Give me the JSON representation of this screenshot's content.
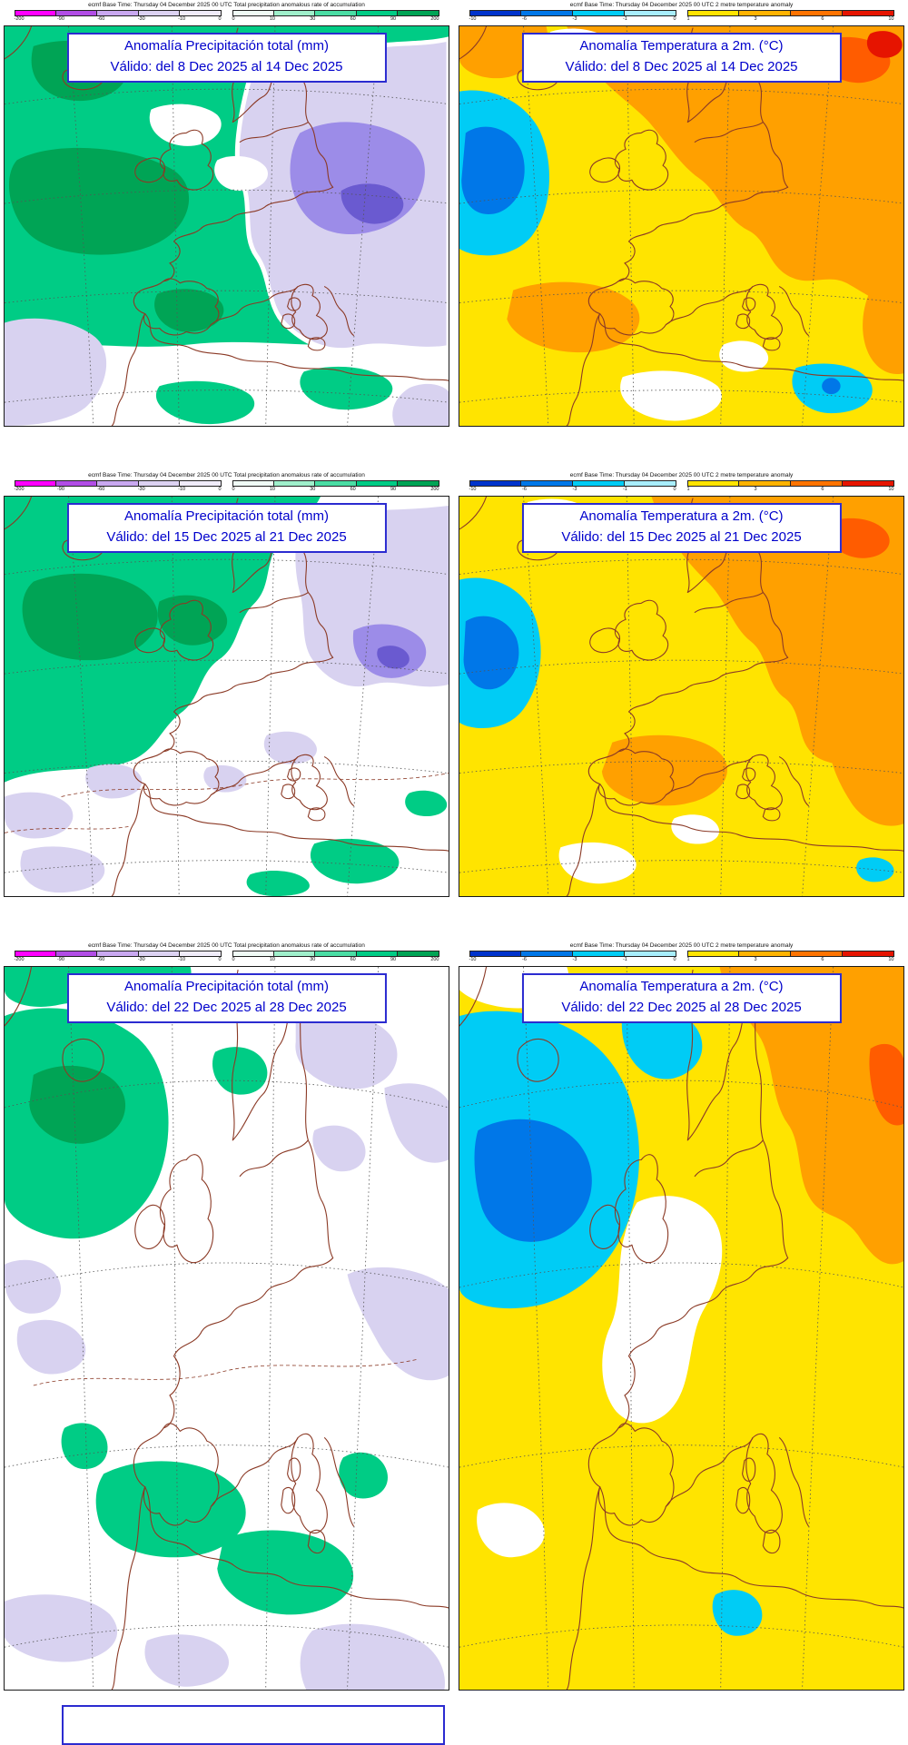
{
  "colors": {
    "ui": {
      "page-bg": "#FFFFFF",
      "frame": "#1A1A1A",
      "title-text": "#0000CC",
      "title-border": "#2B2BD0"
    },
    "precip": {
      "green": "#00CC85",
      "dgreen": "#00A455",
      "lav": "#D8D2F0",
      "purple": "#9C8CE8",
      "dpurple": "#6A5AD0"
    },
    "temp": {
      "yellow": "#FFE400",
      "orange": "#FFA000",
      "deep": "#FF5C00",
      "red": "#E61400",
      "cyan": "#00CCF5",
      "blue": "#0077E8"
    },
    "common": {
      "coast": "#8B3A26",
      "graticule": "#555555"
    }
  },
  "colorbars": {
    "precip": {
      "negative": {
        "colors": [
          "#FF00FF",
          "#B24DE6",
          "#C9A8F0",
          "#DCD2F2",
          "#F0ECFA"
        ],
        "ticks": [
          "-200",
          "-90",
          "-60",
          "-30",
          "-10",
          "0"
        ]
      },
      "positive": {
        "colors": [
          "#F0FBF6",
          "#9FEFCB",
          "#4ADDA4",
          "#00CC85",
          "#00A455"
        ],
        "ticks": [
          "0",
          "10",
          "30",
          "60",
          "90",
          "200"
        ]
      }
    },
    "temp": {
      "negative": {
        "colors": [
          "#0033CC",
          "#0077E8",
          "#00CCF5",
          "#A8EEFC"
        ],
        "ticks": [
          "-10",
          "-6",
          "-3",
          "-1",
          "0"
        ]
      },
      "positive": {
        "colors": [
          "#FFE400",
          "#FFB300",
          "#FF7300",
          "#E61400"
        ],
        "ticks": [
          "1",
          "3",
          "6",
          "10"
        ]
      }
    }
  },
  "panels": [
    {
      "legend_header": "ecmf  Base Time: Thursday 04 December 2025 00 UTC  Total precipitation anomalous rate of accumulation",
      "title1": "Anomalía Precipitación total (mm)",
      "title2": "Válido: del 8 Dec 2025 al 14 Dec 2025"
    },
    {
      "legend_header": "ecmf  Base Time: Thursday 04 December 2025 00 UTC  2 metre temperature anomaly",
      "title1": "Anomalía Temperatura a 2m. (°C)",
      "title2": "Válido: del 8 Dec 2025 al 14 Dec 2025"
    },
    {
      "legend_header": "ecmf  Base Time: Thursday 04 December 2025 00 UTC  Total precipitation anomalous rate of accumulation",
      "title1": "Anomalía Precipitación total (mm)",
      "title2": "Válido: del 15 Dec 2025 al 21 Dec 2025"
    },
    {
      "legend_header": "ecmf  Base Time: Thursday 04 December 2025 00 UTC  2 metre temperature anomaly",
      "title1": "Anomalía Temperatura a 2m. (°C)",
      "title2": "Válido: del 15 Dec 2025 al 21 Dec 2025"
    },
    {
      "legend_header": "ecmf  Base Time: Thursday 04 December 2025 00 UTC  Total precipitation anomalous rate of accumulation",
      "title1": "Anomalía Precipitación total (mm)",
      "title2": "Válido: del 22 Dec 2025 al 28 Dec 2025"
    },
    {
      "legend_header": "ecmf  Base Time: Thursday 04 December 2025 00 UTC  2 metre temperature anomaly",
      "title1": "Anomalía Temperatura a 2m. (°C)",
      "title2": "Válido: del 22 Dec 2025 al 28 Dec 2025"
    }
  ]
}
